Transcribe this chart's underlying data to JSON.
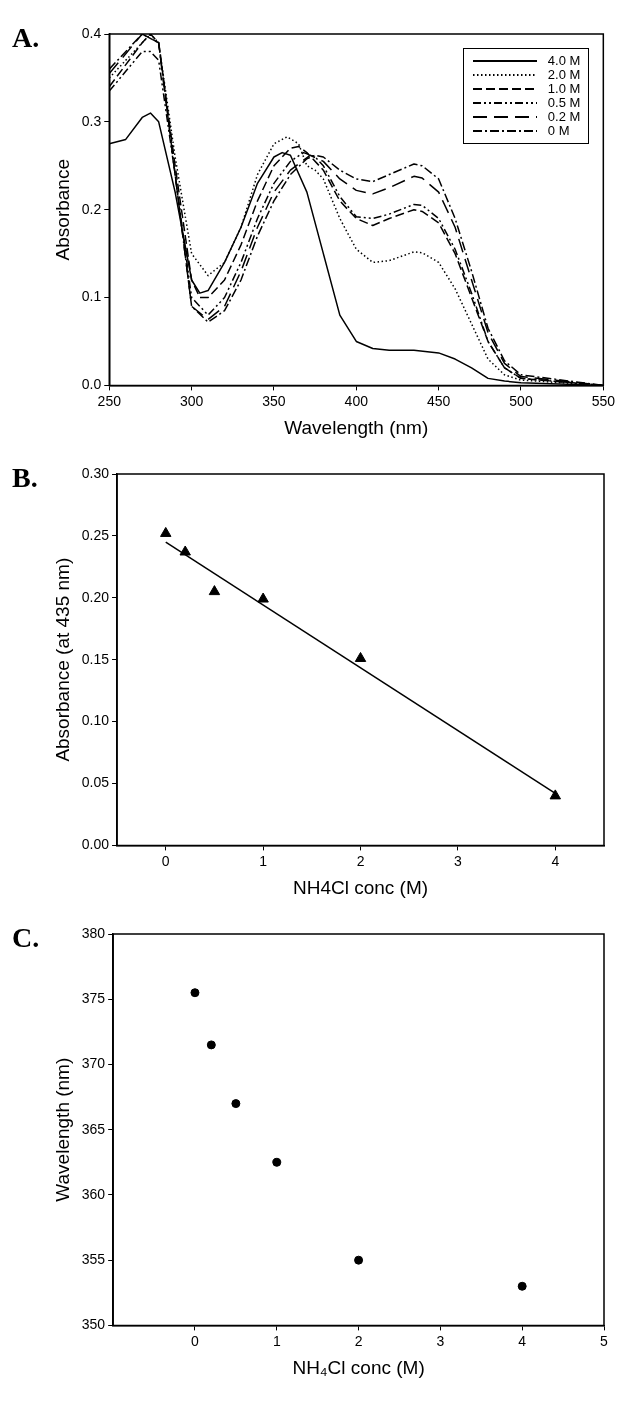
{
  "chart_data": [
    {
      "type": "line",
      "title": "A.",
      "xlabel": "Wavelength (nm)",
      "ylabel": "Absorbance",
      "xlim": [
        250,
        550
      ],
      "xticks": [
        250,
        300,
        350,
        400,
        450,
        500,
        550
      ],
      "ylim": [
        0,
        0.4
      ],
      "yticks": [
        {
          "value": 0,
          "label": "0.0"
        },
        0.1,
        0.2,
        0.3,
        0.4
      ],
      "grid": false,
      "legend": "top right",
      "marker": "none",
      "series": [
        {
          "name": "4.0 M",
          "color": "#000000",
          "line_style": "solid",
          "x": [
            250,
            260,
            270,
            275,
            280,
            290,
            300,
            305,
            310,
            320,
            330,
            340,
            350,
            355,
            360,
            370,
            380,
            390,
            400,
            410,
            420,
            435,
            450,
            460,
            470,
            480,
            490,
            500,
            550
          ],
          "values": [
            0.275,
            0.28,
            0.305,
            0.31,
            0.3,
            0.22,
            0.12,
            0.105,
            0.108,
            0.14,
            0.18,
            0.23,
            0.26,
            0.265,
            0.262,
            0.22,
            0.15,
            0.08,
            0.05,
            0.042,
            0.04,
            0.04,
            0.037,
            0.03,
            0.02,
            0.008,
            0.005,
            0.003,
            0
          ]
        },
        {
          "name": "2.0 M",
          "color": "#000000",
          "line_style": "dotted",
          "x": [
            250,
            260,
            270,
            275,
            280,
            290,
            300,
            310,
            320,
            330,
            340,
            350,
            358,
            365,
            370,
            375,
            380,
            390,
            400,
            410,
            420,
            435,
            440,
            450,
            460,
            470,
            480,
            490,
            500,
            550
          ],
          "values": [
            0.35,
            0.37,
            0.39,
            0.4,
            0.39,
            0.26,
            0.15,
            0.125,
            0.14,
            0.18,
            0.24,
            0.275,
            0.283,
            0.275,
            0.25,
            0.245,
            0.235,
            0.19,
            0.155,
            0.14,
            0.142,
            0.152,
            0.151,
            0.14,
            0.11,
            0.07,
            0.03,
            0.012,
            0.006,
            0
          ]
        },
        {
          "name": "1.0 M",
          "color": "#000000",
          "line_style": "dashed",
          "x": [
            250,
            270,
            275,
            280,
            290,
            300,
            305,
            310,
            320,
            330,
            340,
            350,
            360,
            365,
            370,
            380,
            390,
            400,
            410,
            420,
            435,
            440,
            450,
            460,
            470,
            480,
            490,
            500,
            550
          ],
          "values": [
            0.34,
            0.39,
            0.4,
            0.39,
            0.25,
            0.12,
            0.1,
            0.1,
            0.12,
            0.16,
            0.21,
            0.25,
            0.27,
            0.272,
            0.265,
            0.245,
            0.21,
            0.19,
            0.182,
            0.19,
            0.2,
            0.198,
            0.185,
            0.15,
            0.1,
            0.05,
            0.02,
            0.008,
            0
          ]
        },
        {
          "name": "0.5 M",
          "color": "#000000",
          "line_style": "dashed",
          "x": [
            250,
            270,
            275,
            280,
            290,
            300,
            310,
            320,
            330,
            340,
            350,
            360,
            368,
            375,
            380,
            390,
            400,
            410,
            420,
            435,
            440,
            450,
            460,
            470,
            480,
            490,
            500,
            550
          ],
          "values": [
            0.335,
            0.38,
            0.38,
            0.37,
            0.24,
            0.1,
            0.08,
            0.1,
            0.14,
            0.19,
            0.23,
            0.255,
            0.265,
            0.26,
            0.25,
            0.215,
            0.192,
            0.19,
            0.195,
            0.206,
            0.205,
            0.19,
            0.155,
            0.105,
            0.05,
            0.02,
            0.008,
            0
          ]
        },
        {
          "name": "0.2 M",
          "color": "#000000",
          "line_style": "dashed",
          "x": [
            250,
            270,
            280,
            290,
            300,
            310,
            320,
            330,
            340,
            350,
            360,
            372,
            380,
            390,
            400,
            410,
            420,
            435,
            440,
            450,
            460,
            470,
            480,
            490,
            500,
            550
          ],
          "values": [
            0.355,
            0.4,
            0.39,
            0.24,
            0.09,
            0.075,
            0.09,
            0.13,
            0.18,
            0.22,
            0.245,
            0.262,
            0.255,
            0.235,
            0.222,
            0.218,
            0.225,
            0.238,
            0.236,
            0.22,
            0.18,
            0.12,
            0.06,
            0.025,
            0.01,
            0
          ]
        },
        {
          "name": "0 M",
          "color": "#000000",
          "line_style": "dashed",
          "x": [
            250,
            270,
            280,
            290,
            300,
            310,
            320,
            330,
            340,
            350,
            360,
            370,
            375,
            380,
            390,
            400,
            410,
            420,
            435,
            440,
            450,
            460,
            470,
            480,
            490,
            500,
            550
          ],
          "values": [
            0.36,
            0.4,
            0.39,
            0.24,
            0.09,
            0.072,
            0.085,
            0.12,
            0.17,
            0.21,
            0.24,
            0.258,
            0.262,
            0.26,
            0.245,
            0.235,
            0.232,
            0.24,
            0.252,
            0.25,
            0.235,
            0.19,
            0.13,
            0.065,
            0.028,
            0.012,
            0
          ]
        }
      ]
    },
    {
      "type": "scatter",
      "title": "B.",
      "xlabel": "NH4Cl conc (M)",
      "ylabel": "Absorbance (at 435 nm)",
      "xlim": [
        -0.5,
        4.5
      ],
      "xticks": [
        0,
        1,
        2,
        3,
        4
      ],
      "ylim": [
        0,
        0.3
      ],
      "yticks": [
        {
          "value": 0,
          "label": "0.00"
        },
        {
          "value": 0.05,
          "label": "0.05"
        },
        {
          "value": 0.1,
          "label": "0.10"
        },
        {
          "value": 0.15,
          "label": "0.15"
        },
        {
          "value": 0.2,
          "label": "0.20"
        },
        {
          "value": 0.25,
          "label": "0.25"
        },
        {
          "value": 0.3,
          "label": "0.30"
        }
      ],
      "grid": false,
      "legend": false,
      "marker": "triangle",
      "x": [
        0,
        0.2,
        0.5,
        1,
        2,
        4
      ],
      "series": [
        {
          "color": "#000000",
          "values": [
            0.252,
            0.237,
            0.205,
            0.199,
            0.151,
            0.04
          ]
        },
        {
          "type": "line",
          "color": "#000000",
          "marker": "none",
          "x": [
            0,
            4
          ],
          "values": [
            0.245,
            0.042
          ]
        }
      ]
    },
    {
      "type": "scatter",
      "title": "C.",
      "xlabel": "NH₄Cl conc (M)",
      "ylabel": "Wavelength (nm)",
      "xlim": [
        -1,
        5
      ],
      "xticks": [
        0,
        1,
        2,
        3,
        4,
        5
      ],
      "ylim": [
        350,
        380
      ],
      "yticks": [
        350,
        355,
        360,
        365,
        370,
        375,
        380
      ],
      "grid": false,
      "legend": false,
      "marker": "circle",
      "x": [
        0,
        0.2,
        0.5,
        1,
        2,
        4
      ],
      "series": [
        {
          "color": "#000000",
          "values": [
            375.5,
            371.5,
            367,
            362.5,
            355,
            353
          ]
        }
      ]
    }
  ]
}
